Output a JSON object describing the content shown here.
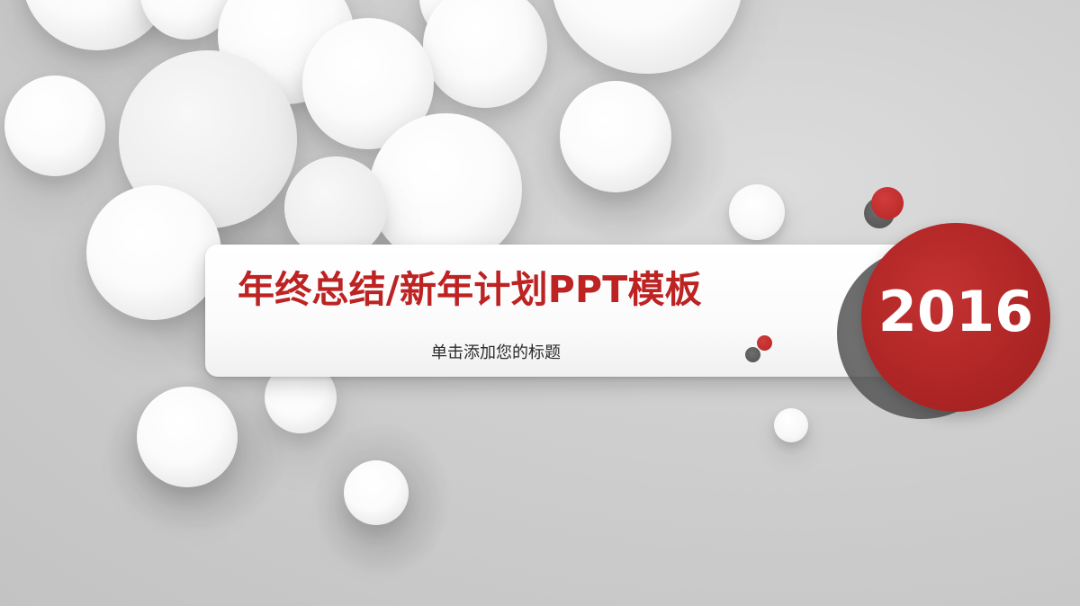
{
  "slide": {
    "title": "年终总结/新年计划PPT模板",
    "subtitle": "单击添加您的标题",
    "year": "2016"
  },
  "colors": {
    "accent": "#bd2323",
    "year_circle": "#b02626",
    "background": "#cfcfcf"
  },
  "icons": {
    "decor": "circle-bubble"
  }
}
